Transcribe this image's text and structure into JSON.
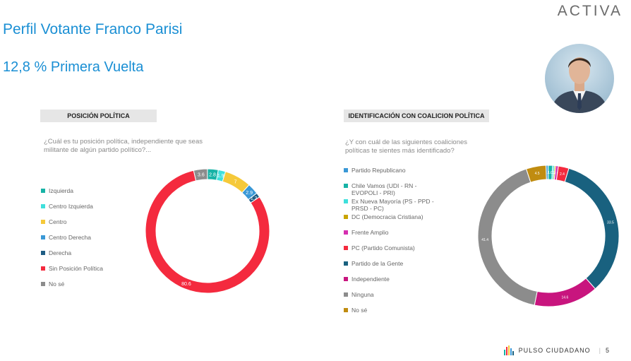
{
  "header": {
    "brand": "ACTIVA",
    "title": "Perfil Votante Franco Parisi",
    "subtitle": "12,8 % Primera Vuelta"
  },
  "footer": {
    "label": "PULSO CIUDADANO",
    "page": "5"
  },
  "chart_data": [
    {
      "type": "pie",
      "title": "POSICIÓN POLÍTICA",
      "question": "¿Cuál es tu posición política, independiente que seas militante de algún partido político?...",
      "labels": [
        "Izquierda",
        "Centro Izquierda",
        "Centro",
        "Centro Derecha",
        "Derecha",
        "Sin Posición Política",
        "No sé"
      ],
      "values": [
        2.8,
        1.9,
        7,
        2.9,
        1.2,
        80.6,
        3.6
      ],
      "value_labels": [
        "2.8",
        "1.9",
        "7",
        "2.9",
        "1.2",
        "80.6",
        "3.6"
      ],
      "colors": [
        "#17b3a6",
        "#3fe0dc",
        "#f5c93a",
        "#3a98d6",
        "#1f5d84",
        "#f42a3e",
        "#8c8c8c"
      ]
    },
    {
      "type": "pie",
      "title": "IDENTIFICACIÓN CON COALICION POLÍTICA",
      "question": "¿Y con cuál de las siguientes coaliciones políticas te sientes más identificado?",
      "labels": [
        "Partido Republicano",
        "Chile Vamos (UDI - RN - EVOPOLI - PRI)",
        "Ex Nueva Mayoría (PS - PPD - PRSD - PC)",
        "DC (Democracia Cristiana)",
        "Frente Amplio",
        "PC (Partido Comunista)",
        "Partido de la Gente",
        "Independiente",
        "Ninguna",
        "No sé"
      ],
      "values": [
        0.5,
        1.0,
        0.4,
        0.3,
        0.6,
        2.4,
        33.5,
        14.6,
        41.4,
        4.5
      ],
      "value_labels": [
        "0.5",
        "1.0",
        "0.4",
        "0.3",
        "0.6",
        "2.4",
        "33.5",
        "14.6",
        "41.4",
        "4.5"
      ],
      "colors": [
        "#3a98d6",
        "#17b3a6",
        "#3fe0dc",
        "#c9a400",
        "#d52fb0",
        "#f42a3e",
        "#19617f",
        "#c8157e",
        "#8c8c8c",
        "#c08c10"
      ]
    }
  ]
}
